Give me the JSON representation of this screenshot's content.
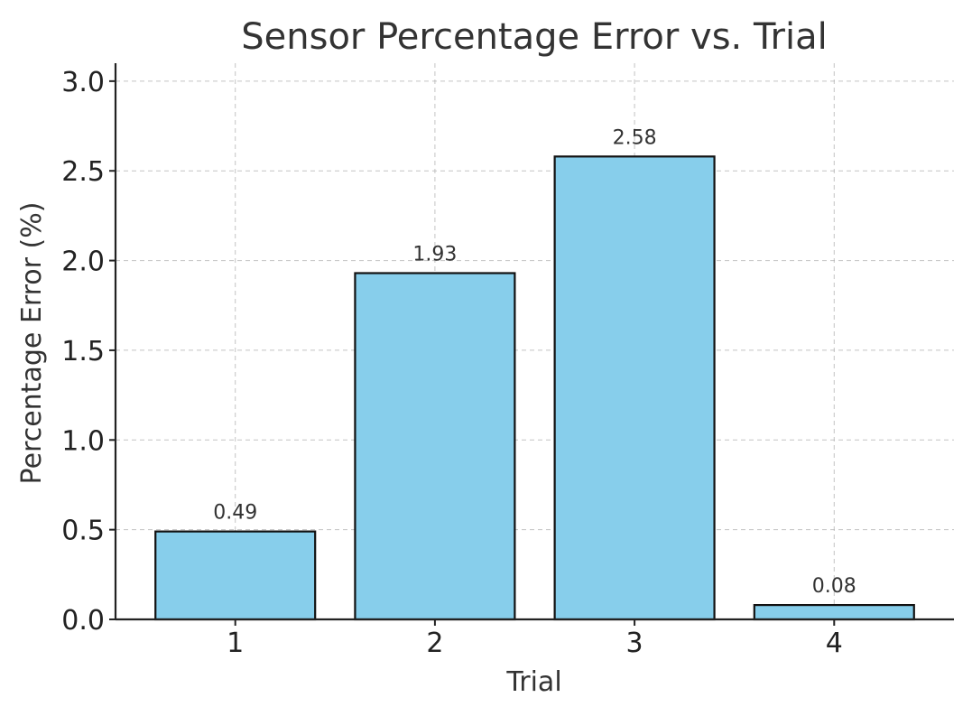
{
  "chart_data": {
    "type": "bar",
    "title": "Sensor Percentage Error vs. Trial",
    "xlabel": "Trial",
    "ylabel": "Percentage Error (%)",
    "categories": [
      "1",
      "2",
      "3",
      "4"
    ],
    "values": [
      0.49,
      1.93,
      2.58,
      0.08
    ],
    "data_labels": [
      "0.49",
      "1.93",
      "2.58",
      "0.08"
    ],
    "ylim": [
      0,
      3.1
    ],
    "yticks": [
      0.0,
      0.5,
      1.0,
      1.5,
      2.0,
      2.5,
      3.0
    ],
    "ytick_labels": [
      "0.0",
      "0.5",
      "1.0",
      "1.5",
      "2.0",
      "2.5",
      "3.0"
    ],
    "grid": true,
    "bar_color": "#87CEEB",
    "bar_edge_color": "#111111"
  }
}
